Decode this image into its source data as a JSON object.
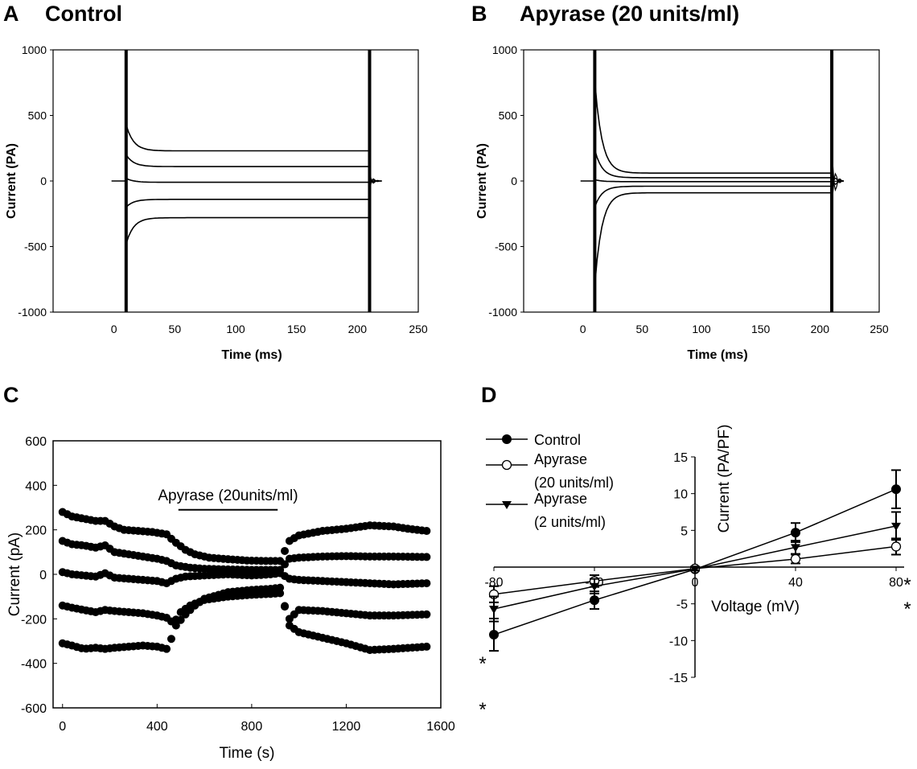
{
  "panels": [
    {
      "letter": "A",
      "title": "Control",
      "chart_data": {
        "type": "line",
        "title": "Control",
        "xlabel": "Time (ms)",
        "ylabel": "Current (PA)",
        "xlim": [
          -50,
          250
        ],
        "ylim": [
          -1000,
          1000
        ],
        "xticks": [
          "0",
          "50",
          "100",
          "150",
          "200",
          "250"
        ],
        "yticks": [
          "-1000",
          "-500",
          "0",
          "500",
          "1000"
        ],
        "step_start": 10,
        "step_end": 210,
        "series": [
          {
            "values": {
              "peak": 430,
              "steady": 230,
              "tail": 60
            }
          },
          {
            "values": {
              "peak": 200,
              "steady": 110,
              "tail": 30
            }
          },
          {
            "values": {
              "peak": 20,
              "steady": -10,
              "tail": 5
            }
          },
          {
            "values": {
              "peak": -200,
              "steady": -140,
              "tail": -30
            }
          },
          {
            "values": {
              "peak": -480,
              "steady": -280,
              "tail": -60
            }
          }
        ]
      }
    },
    {
      "letter": "B",
      "title": "Apyrase (20 units/ml)",
      "chart_data": {
        "type": "line",
        "title": "Apyrase (20 units/ml)",
        "xlabel": "Time (ms)",
        "ylabel": "Current (PA)",
        "xlim": [
          -50,
          250
        ],
        "ylim": [
          -1000,
          1000
        ],
        "xticks": [
          "0",
          "50",
          "100",
          "150",
          "200",
          "250"
        ],
        "yticks": [
          "-1000",
          "-500",
          "0",
          "500",
          "1000"
        ],
        "step_start": 10,
        "step_end": 210,
        "series": [
          {
            "values": {
              "peak": 770,
              "steady": 60,
              "tail": 250
            }
          },
          {
            "values": {
              "peak": 240,
              "steady": 25,
              "tail": 100
            }
          },
          {
            "values": {
              "peak": 10,
              "steady": -5,
              "tail": 10
            }
          },
          {
            "values": {
              "peak": -200,
              "steady": -40,
              "tail": -80
            }
          },
          {
            "values": {
              "peak": -800,
              "steady": -90,
              "tail": -200
            }
          }
        ]
      }
    },
    {
      "letter": "C",
      "title": "",
      "chart_data": {
        "type": "scatter",
        "xlabel": "Time (s)",
        "ylabel": "Current (pA)",
        "xlim": [
          -40,
          1600
        ],
        "ylim": [
          -600,
          600
        ],
        "xticks": [
          "0",
          "400",
          "800",
          "1200",
          "1600"
        ],
        "yticks": [
          "-600",
          "-400",
          "-200",
          "0",
          "200",
          "400",
          "600"
        ],
        "annotation": "Apyrase (20units/ml)",
        "annotation_range": [
          490,
          910
        ],
        "annotation_y": 290,
        "series": [
          {
            "values": [
              [
                0,
                280
              ],
              [
                40,
                260
              ],
              [
                90,
                250
              ],
              [
                140,
                240
              ],
              [
                180,
                240
              ],
              [
                220,
                215
              ],
              [
                260,
                200
              ],
              [
                320,
                195
              ],
              [
                380,
                190
              ],
              [
                440,
                180
              ],
              [
                470,
                150
              ],
              [
                520,
                110
              ],
              [
                560,
                90
              ],
              [
                620,
                75
              ],
              [
                700,
                68
              ],
              [
                780,
                62
              ],
              [
                860,
                60
              ],
              [
                920,
                60
              ],
              [
                960,
                150
              ],
              [
                1000,
                175
              ],
              [
                1100,
                195
              ],
              [
                1200,
                205
              ],
              [
                1300,
                220
              ],
              [
                1400,
                215
              ],
              [
                1460,
                205
              ],
              [
                1540,
                195
              ]
            ]
          },
          {
            "values": [
              [
                0,
                150
              ],
              [
                40,
                135
              ],
              [
                90,
                130
              ],
              [
                140,
                120
              ],
              [
                180,
                130
              ],
              [
                220,
                100
              ],
              [
                280,
                90
              ],
              [
                340,
                80
              ],
              [
                400,
                70
              ],
              [
                440,
                60
              ],
              [
                480,
                40
              ],
              [
                540,
                30
              ],
              [
                600,
                25
              ],
              [
                700,
                22
              ],
              [
                800,
                20
              ],
              [
                880,
                20
              ],
              [
                920,
                20
              ],
              [
                960,
                70
              ],
              [
                1000,
                75
              ],
              [
                1100,
                80
              ],
              [
                1200,
                82
              ],
              [
                1300,
                80
              ],
              [
                1400,
                80
              ],
              [
                1540,
                78
              ]
            ]
          },
          {
            "values": [
              [
                0,
                10
              ],
              [
                40,
                0
              ],
              [
                90,
                -5
              ],
              [
                140,
                -10
              ],
              [
                180,
                5
              ],
              [
                220,
                -15
              ],
              [
                280,
                -20
              ],
              [
                340,
                -25
              ],
              [
                400,
                -30
              ],
              [
                440,
                -40
              ],
              [
                480,
                -20
              ],
              [
                520,
                -10
              ],
              [
                600,
                -5
              ],
              [
                700,
                0
              ],
              [
                800,
                -5
              ],
              [
                880,
                0
              ],
              [
                920,
                5
              ],
              [
                960,
                -20
              ],
              [
                1000,
                -25
              ],
              [
                1100,
                -30
              ],
              [
                1200,
                -35
              ],
              [
                1300,
                -40
              ],
              [
                1400,
                -45
              ],
              [
                1540,
                -40
              ]
            ]
          },
          {
            "values": [
              [
                0,
                -140
              ],
              [
                40,
                -150
              ],
              [
                90,
                -160
              ],
              [
                140,
                -170
              ],
              [
                180,
                -160
              ],
              [
                220,
                -165
              ],
              [
                280,
                -170
              ],
              [
                340,
                -175
              ],
              [
                400,
                -185
              ],
              [
                440,
                -195
              ],
              [
                470,
                -220
              ],
              [
                500,
                -170
              ],
              [
                540,
                -140
              ],
              [
                600,
                -115
              ],
              [
                700,
                -100
              ],
              [
                800,
                -92
              ],
              [
                880,
                -88
              ],
              [
                920,
                -85
              ],
              [
                960,
                -200
              ],
              [
                1000,
                -160
              ],
              [
                1100,
                -165
              ],
              [
                1200,
                -175
              ],
              [
                1300,
                -185
              ],
              [
                1400,
                -185
              ],
              [
                1540,
                -180
              ]
            ]
          },
          {
            "values": [
              [
                0,
                -310
              ],
              [
                40,
                -320
              ],
              [
                90,
                -335
              ],
              [
                140,
                -330
              ],
              [
                180,
                -335
              ],
              [
                220,
                -330
              ],
              [
                280,
                -325
              ],
              [
                340,
                -320
              ],
              [
                400,
                -325
              ],
              [
                440,
                -335
              ],
              [
                460,
                -290
              ],
              [
                480,
                -230
              ],
              [
                520,
                -180
              ],
              [
                560,
                -140
              ],
              [
                600,
                -110
              ],
              [
                700,
                -80
              ],
              [
                800,
                -70
              ],
              [
                880,
                -65
              ],
              [
                920,
                -60
              ],
              [
                960,
                -230
              ],
              [
                1000,
                -260
              ],
              [
                1100,
                -285
              ],
              [
                1200,
                -310
              ],
              [
                1300,
                -340
              ],
              [
                1400,
                -335
              ],
              [
                1540,
                -325
              ]
            ]
          }
        ]
      }
    },
    {
      "letter": "D",
      "title": "",
      "chart_data": {
        "type": "line",
        "xlabel": "Voltage (mV)",
        "ylabel": "Current (PA/PF)",
        "xlim": [
          -80,
          80
        ],
        "ylim": [
          -15,
          15
        ],
        "xticks": [
          "-80",
          "-40",
          "0",
          "40",
          "80"
        ],
        "yticks": [
          "-15",
          "-10",
          "-5",
          "0",
          "5",
          "10",
          "15"
        ],
        "categories": [
          -80,
          -40,
          0,
          40,
          80
        ],
        "series": [
          {
            "name": "Control",
            "marker": "filled-circle",
            "values": [
              -9.2,
              -4.5,
              -0.3,
              4.7,
              10.6
            ],
            "errors": [
              2.2,
              1.2,
              0.2,
              1.3,
              2.6
            ]
          },
          {
            "name": "Apyrase\n(20 units/ml)",
            "marker": "open-circle",
            "values": [
              -3.7,
              -1.9,
              -0.2,
              1.1,
              2.8
            ],
            "errors": [
              1.1,
              0.8,
              0.2,
              0.6,
              1.1
            ]
          },
          {
            "name": "Apyrase\n(2 units/ml)",
            "marker": "filled-triangle",
            "values": [
              -5.7,
              -2.6,
              -0.25,
              2.7,
              5.6
            ],
            "errors": [
              1.7,
              1.0,
              0.2,
              0.9,
              1.9
            ]
          }
        ],
        "legend_labels": [
          "Control",
          "Apyrase",
          "(20 units/ml)",
          "Apyrase",
          "(2 units/ml)"
        ],
        "significance_marks": [
          "*",
          "*",
          "*",
          "*"
        ]
      }
    }
  ]
}
